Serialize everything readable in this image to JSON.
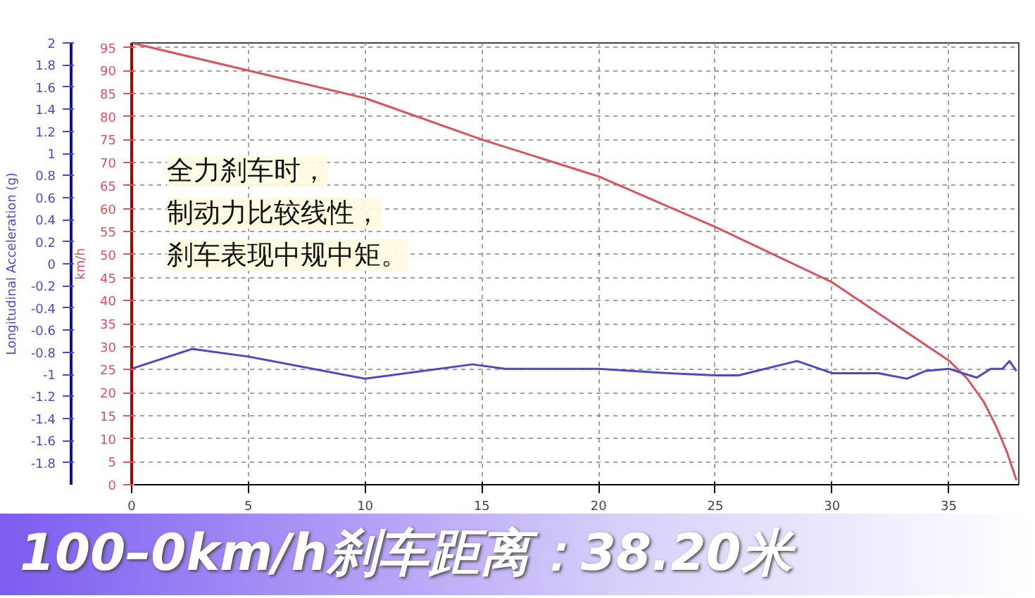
{
  "chart_data": {
    "type": "line",
    "title": "100–0km/h刹车距离：38.20米",
    "ylabel": "km/h",
    "y2label": "Longitudinal Acceleration (g)",
    "annotations": [
      "全力刹车时，",
      "制动力比较线性，",
      "刹车表现中规中矩。"
    ],
    "series": [
      {
        "color": "#d9525e",
        "x": [
          0,
          5,
          10,
          15,
          20,
          25,
          30,
          35,
          35.8,
          36.5,
          37,
          37.5,
          37.9
        ],
        "values": [
          96,
          90,
          84,
          75,
          67,
          56,
          44,
          27,
          23,
          18,
          13,
          7,
          1
        ]
      },
      {
        "color": "#4a4ac8",
        "axis": "y2",
        "x": [
          0,
          2.6,
          5,
          10,
          14.6,
          16,
          20,
          23,
          25,
          26,
          28.5,
          30,
          32,
          33.2,
          34,
          35,
          36.2,
          36.8,
          37.3,
          37.6,
          37.9
        ],
        "values": [
          -0.95,
          -0.77,
          -0.84,
          -1.04,
          -0.91,
          -0.95,
          -0.95,
          -0.99,
          -1.01,
          -1.01,
          -0.88,
          -0.99,
          -0.99,
          -1.04,
          -0.97,
          -0.95,
          -1.03,
          -0.95,
          -0.95,
          -0.88,
          -0.97
        ]
      }
    ],
    "xlim": [
      0,
      38
    ],
    "xticks": [
      0,
      5,
      10,
      15,
      20,
      25,
      30,
      35
    ],
    "ylim": [
      0,
      96
    ],
    "yticks": [
      0,
      5,
      10,
      15,
      20,
      25,
      30,
      35,
      40,
      45,
      50,
      55,
      60,
      65,
      70,
      75,
      80,
      85,
      90,
      95
    ],
    "y2lim": [
      -2,
      2
    ],
    "y2ticks": [
      -1.8,
      -1.6,
      -1.4,
      -1.2,
      -1,
      -0.8,
      -0.6,
      -0.4,
      -0.2,
      0,
      0.2,
      0.4,
      0.6,
      0.8,
      1,
      1.2,
      1.4,
      1.6,
      1.8,
      2
    ],
    "grid": true,
    "line_style": "solid"
  }
}
